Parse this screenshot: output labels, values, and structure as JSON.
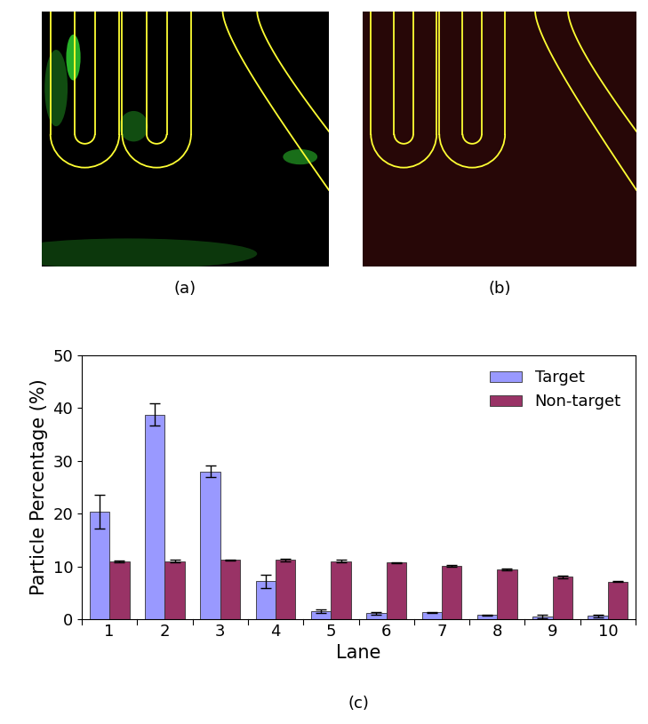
{
  "panel_labels": [
    "(a)",
    "(b)",
    "(c)"
  ],
  "chart_data": {
    "type": "bar",
    "x_label": "Lane",
    "y_label": "Particle Percentage (%)",
    "categories": [
      "1",
      "2",
      "3",
      "4",
      "5",
      "6",
      "7",
      "8",
      "9",
      "10"
    ],
    "series": [
      {
        "name": "Target",
        "color": "#9999ff",
        "values": [
          20.3,
          38.8,
          28.0,
          7.2,
          1.5,
          1.1,
          1.3,
          0.8,
          0.5,
          0.6
        ],
        "errors": [
          3.2,
          2.1,
          1.1,
          1.3,
          0.4,
          0.2,
          0.1,
          0.1,
          0.3,
          0.2
        ]
      },
      {
        "name": "Non-target",
        "color": "#993366",
        "values": [
          10.9,
          11.0,
          11.2,
          11.2,
          11.0,
          10.7,
          10.1,
          9.4,
          8.0,
          7.1
        ],
        "errors": [
          0.2,
          0.2,
          0.1,
          0.3,
          0.2,
          0.1,
          0.1,
          0.2,
          0.2,
          0.1
        ]
      }
    ],
    "ylim": [
      0,
      50
    ],
    "yticks": [
      0,
      10,
      20,
      30,
      40,
      50
    ],
    "legend": "upper right"
  }
}
